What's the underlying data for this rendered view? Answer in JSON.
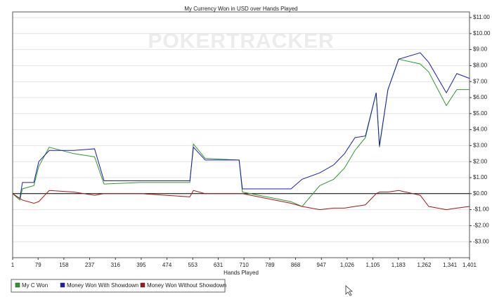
{
  "chart_data": {
    "type": "line",
    "title": "My Currency Won in USD over Hands Played",
    "x_label": "Hands Played",
    "watermark": "POKERTRACKER",
    "x": [
      1,
      23,
      31,
      66,
      81,
      113,
      188,
      252,
      281,
      393,
      544,
      555,
      591,
      695,
      705,
      854,
      888,
      942,
      985,
      1018,
      1050,
      1082,
      1115,
      1125,
      1151,
      1184,
      1250,
      1276,
      1330,
      1362,
      1401
    ],
    "series": [
      {
        "name": "My C Won",
        "color": "#2a9a2a",
        "values": [
          0,
          -0.4,
          0.3,
          0.5,
          1.7,
          2.9,
          2.5,
          2.3,
          0.6,
          0.7,
          0.7,
          3.1,
          2.2,
          2.1,
          0.1,
          -0.5,
          -0.8,
          0.5,
          0.9,
          1.6,
          2.7,
          3.5,
          6.3,
          2.9,
          6.5,
          8.4,
          8.1,
          7.6,
          5.5,
          6.5,
          6.5
        ]
      },
      {
        "name": "Money Won With Showdown",
        "color": "#1c1cb0",
        "values": [
          0,
          -0.3,
          0.7,
          0.7,
          2.0,
          2.7,
          2.7,
          2.8,
          0.8,
          0.8,
          0.8,
          2.9,
          2.1,
          2.1,
          0.3,
          0.3,
          0.9,
          1.3,
          1.8,
          2.5,
          3.5,
          3.6,
          6.3,
          3.0,
          6.5,
          8.4,
          8.8,
          8.2,
          6.3,
          7.5,
          7.2
        ]
      },
      {
        "name": "Money Won Without Showdown",
        "color": "#a01818",
        "values": [
          0,
          -0.3,
          -0.4,
          -0.6,
          -0.5,
          0.2,
          0.1,
          -0.1,
          0,
          0,
          -0.2,
          0.2,
          0,
          0,
          0,
          -0.6,
          -0.8,
          -1.0,
          -0.9,
          -0.9,
          -0.8,
          -0.7,
          0,
          0.1,
          0.1,
          0.2,
          -0.1,
          -0.8,
          -1.0,
          -0.9,
          -0.8
        ]
      }
    ],
    "xlim": [
      1,
      1401
    ],
    "xticks": [
      1,
      79,
      158,
      237,
      316,
      395,
      474,
      553,
      631,
      710,
      789,
      868,
      947,
      {
        "value": 1026,
        "label": "1,026"
      },
      {
        "value": 1105,
        "label": "1,105"
      },
      {
        "value": 1183,
        "label": "1,183"
      },
      {
        "value": 1262,
        "label": "1,262"
      },
      {
        "value": 1341,
        "label": "1,341"
      },
      {
        "value": 1401,
        "label": "1,401"
      }
    ],
    "ylim": [
      -4,
      11
    ],
    "yticks": [
      {
        "value": -3,
        "label": "-$3.00"
      },
      {
        "value": -2,
        "label": "-$2.00"
      },
      {
        "value": -1,
        "label": "-$1.00"
      },
      {
        "value": 0,
        "label": "$0.00"
      },
      {
        "value": 1,
        "label": "$1.00"
      },
      {
        "value": 2,
        "label": "$2.00"
      },
      {
        "value": 3,
        "label": "$3.00"
      },
      {
        "value": 4,
        "label": "$4.00"
      },
      {
        "value": 5,
        "label": "$5.00"
      },
      {
        "value": 6,
        "label": "$6.00"
      },
      {
        "value": 7,
        "label": "$7.00"
      },
      {
        "value": 8,
        "label": "$8.00"
      },
      {
        "value": 9,
        "label": "$9.00"
      },
      {
        "value": 10,
        "label": "$10.00"
      },
      {
        "value": 11,
        "label": "$11.00"
      }
    ],
    "grid": true
  }
}
